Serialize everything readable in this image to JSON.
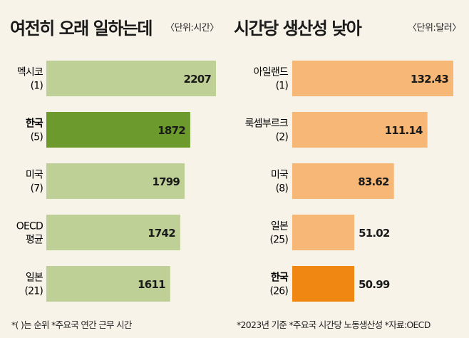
{
  "chart_data": [
    {
      "type": "bar",
      "orientation": "horizontal",
      "title": "여전히 오래 일하는데",
      "unit": "〈단위:시간〉",
      "categories": [
        {
          "name": "멕시코",
          "rank": "(1)"
        },
        {
          "name": "한국",
          "rank": "(5)"
        },
        {
          "name": "미국",
          "rank": "(7)"
        },
        {
          "name": [
            "OECD",
            "평균"
          ],
          "rank": ""
        },
        {
          "name": "일본",
          "rank": "(21)"
        }
      ],
      "values": [
        2207,
        1872,
        1799,
        1742,
        1611
      ],
      "value_labels": [
        "2207",
        "1872",
        "1799",
        "1742",
        "1611"
      ],
      "highlight_index": 1,
      "colors": {
        "bar": "#bfd096",
        "highlight": "#6c9a2c"
      },
      "grid": false
    },
    {
      "type": "bar",
      "orientation": "horizontal",
      "title": "시간당 생산성 낮아",
      "unit": "〈단위:달러〉",
      "categories": [
        {
          "name": "아일랜드",
          "rank": "(1)"
        },
        {
          "name": "룩셈부르크",
          "rank": "(2)"
        },
        {
          "name": "미국",
          "rank": "(8)"
        },
        {
          "name": "일본",
          "rank": "(25)"
        },
        {
          "name": "한국",
          "rank": "(26)"
        }
      ],
      "values": [
        132.43,
        111.14,
        83.62,
        51.02,
        50.99
      ],
      "value_labels": [
        "132.43",
        "111.14",
        "83.62",
        "51.02",
        "50.99"
      ],
      "highlight_index": 4,
      "colors": {
        "bar": "#f7b776",
        "highlight": "#ef8712"
      },
      "grid": false
    }
  ],
  "footer": {
    "left": "*(   )는 순위  *주요국 연간 근무 시간",
    "right": "*2023년 기준  *주요국 시간당 노동생산성   *자료:OECD"
  }
}
